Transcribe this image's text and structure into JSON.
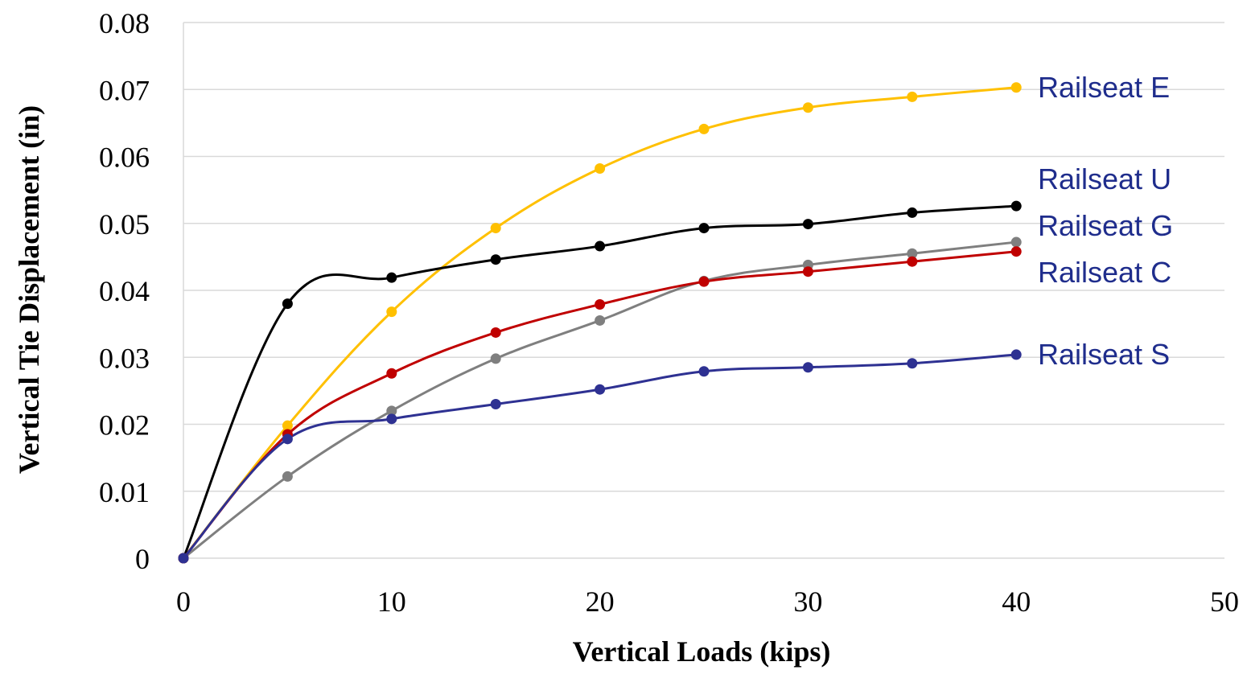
{
  "chart_data": {
    "type": "line",
    "title": "",
    "xlabel": "Vertical Loads (kips)",
    "ylabel": "Vertical Tie Displacement (in)",
    "xlim": [
      0,
      50
    ],
    "ylim": [
      0,
      0.08
    ],
    "x_ticks": [
      "0",
      "10",
      "20",
      "30",
      "40",
      "50"
    ],
    "y_ticks": [
      "0",
      "0.01",
      "0.02",
      "0.03",
      "0.04",
      "0.05",
      "0.06",
      "0.07",
      "0.08"
    ],
    "grid": "horizontal",
    "legend": "direct labels at line ends (right)",
    "x": [
      0,
      5,
      10,
      15,
      20,
      25,
      30,
      35,
      40
    ],
    "series": [
      {
        "name": "Railseat E",
        "color": "#ffc000",
        "label_color": "#1f2d8c",
        "values": [
          0,
          0.0198,
          0.0368,
          0.0493,
          0.0582,
          0.0641,
          0.0673,
          0.0689,
          0.0703
        ]
      },
      {
        "name": "Railseat U",
        "color": "#000000",
        "label_color": "#1f2d8c",
        "values": [
          0,
          0.038,
          0.0419,
          0.0446,
          0.0466,
          0.0493,
          0.0499,
          0.0516,
          0.0526
        ]
      },
      {
        "name": "Railseat G",
        "color": "#7f7f7f",
        "label_color": "#1f2d8c",
        "values": [
          0,
          0.0122,
          0.022,
          0.0298,
          0.0355,
          0.0414,
          0.0438,
          0.0455,
          0.0472
        ]
      },
      {
        "name": "Railseat C",
        "color": "#c00000",
        "label_color": "#1f2d8c",
        "values": [
          0,
          0.0185,
          0.0276,
          0.0337,
          0.0379,
          0.0413,
          0.0428,
          0.0443,
          0.0458
        ]
      },
      {
        "name": "Railseat S",
        "color": "#2e3192",
        "label_color": "#1f2d8c",
        "values": [
          0,
          0.0178,
          0.0208,
          0.023,
          0.0252,
          0.0279,
          0.0285,
          0.0291,
          0.0304
        ]
      }
    ]
  }
}
